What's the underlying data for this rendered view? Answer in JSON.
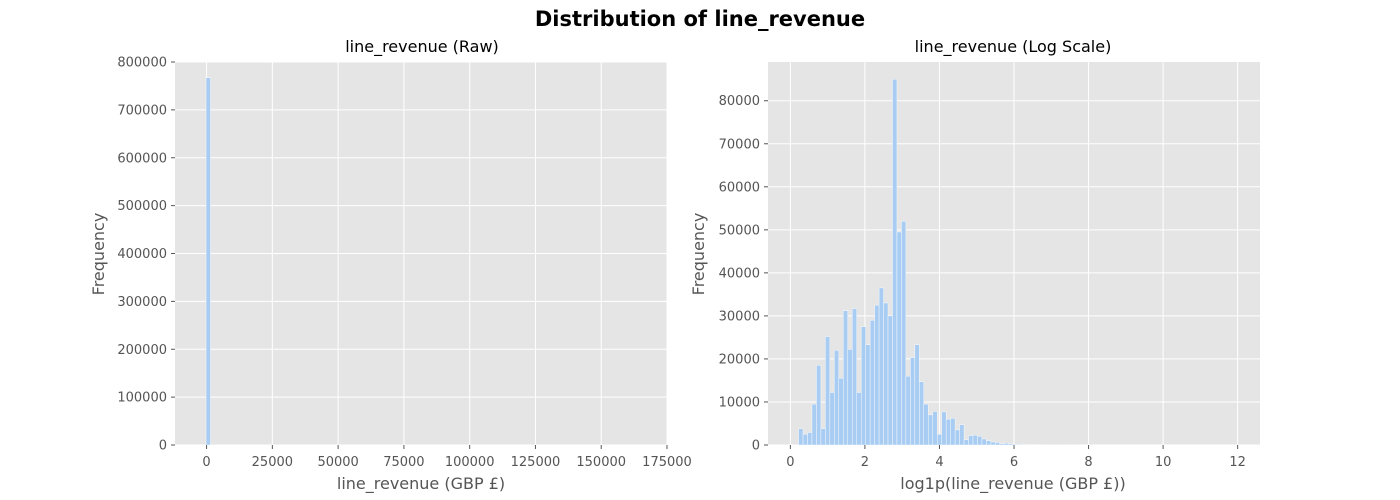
{
  "figure": {
    "title": "Distribution of line_revenue"
  },
  "chart_data": [
    {
      "type": "bar",
      "title": "line_revenue (Raw)",
      "xlabel": "line_revenue (GBP £)",
      "ylabel": "Frequency",
      "xlim": [
        -12000,
        175000
      ],
      "ylim": [
        0,
        800000
      ],
      "xticks": [
        0,
        25000,
        50000,
        75000,
        100000,
        125000,
        150000,
        175000
      ],
      "yticks": [
        0,
        100000,
        200000,
        300000,
        400000,
        500000,
        600000,
        700000,
        800000
      ],
      "grid": true,
      "bar_color": "#a9cdf2",
      "bins": [
        {
          "x0": -200,
          "x1": 1500,
          "value": 767000
        },
        {
          "x0": 1500,
          "x1": 3200,
          "value": 300
        }
      ]
    },
    {
      "type": "bar",
      "title": "line_revenue (Log Scale)",
      "xlabel": "log1p(line_revenue (GBP £))",
      "ylabel": "Frequency",
      "xlim": [
        -0.6,
        12.6
      ],
      "ylim": [
        0,
        89000
      ],
      "xticks": [
        0,
        2,
        4,
        6,
        8,
        10,
        12
      ],
      "yticks": [
        0,
        10000,
        20000,
        30000,
        40000,
        50000,
        60000,
        70000,
        80000
      ],
      "grid": true,
      "bar_color": "#a9cdf2",
      "bin_start": 0.1,
      "bin_width": 0.12,
      "values": [
        0,
        3800,
        2500,
        2900,
        9500,
        18500,
        3800,
        25200,
        12200,
        22000,
        15500,
        31200,
        22200,
        31700,
        12200,
        27500,
        23300,
        29000,
        32500,
        36500,
        33000,
        30000,
        85000,
        49500,
        52000,
        16000,
        20300,
        23300,
        14700,
        9500,
        7000,
        7800,
        2500,
        7700,
        6000,
        6200,
        3500,
        4700,
        1200,
        2200,
        2300,
        2000,
        1400,
        1000,
        700,
        600,
        300,
        400,
        250,
        180,
        150,
        120,
        100,
        80,
        60,
        50,
        40,
        30,
        25,
        20,
        15,
        12,
        10,
        8,
        6,
        5,
        4,
        3,
        2,
        2,
        1,
        1,
        1,
        1,
        1,
        1,
        1,
        1,
        1,
        1,
        1,
        1,
        1,
        1,
        1,
        1,
        1,
        1,
        1,
        1,
        1,
        1,
        1,
        1,
        1
      ]
    }
  ]
}
